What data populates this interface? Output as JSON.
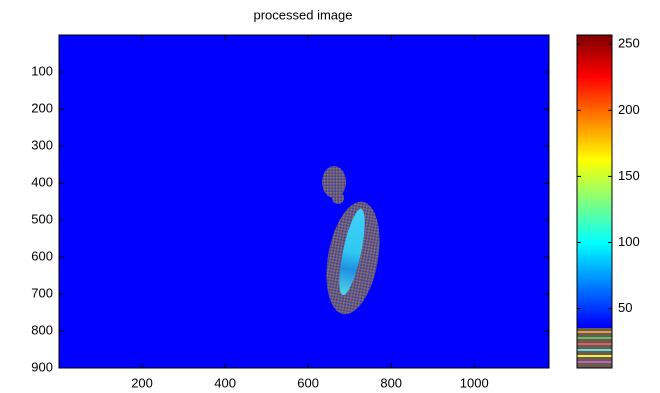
{
  "chart_data": {
    "type": "image",
    "title": "processed image",
    "xlim": [
      0,
      1180
    ],
    "xticks": [
      200,
      400,
      600,
      800,
      1000
    ],
    "ylim": [
      0,
      900
    ],
    "yticks": [
      100,
      200,
      300,
      400,
      500,
      600,
      700,
      800,
      900
    ],
    "ydir": "reverse",
    "colormap": "jet",
    "colorbar": {
      "lim": [
        5,
        257
      ],
      "ticks": [
        50,
        100,
        150,
        200,
        250
      ]
    }
  }
}
